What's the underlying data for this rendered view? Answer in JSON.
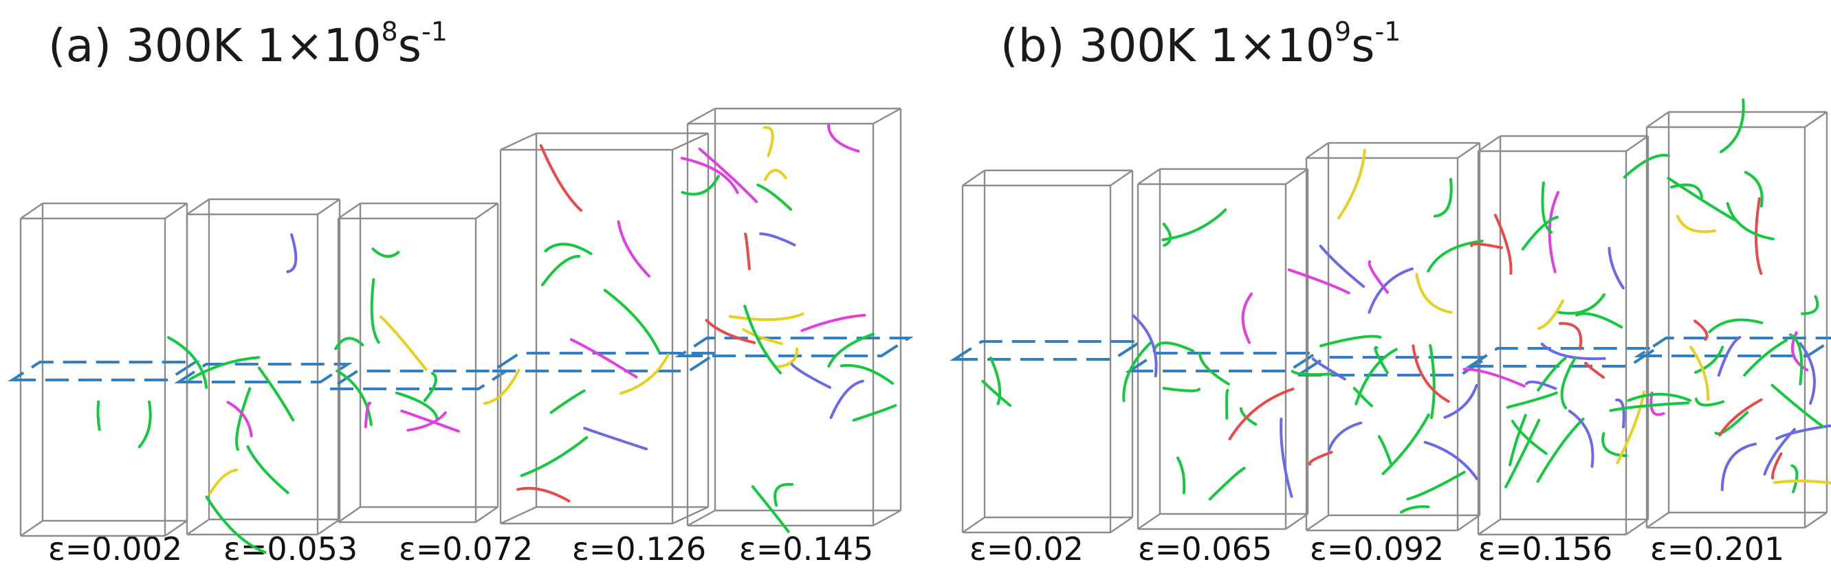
{
  "panels": [
    {
      "id": "a",
      "title_prefix": "(a) 300K 1×10",
      "title_exp": "8",
      "title_unit": "s",
      "title_unit_exp": "-1",
      "strains": [
        "ε=0.002",
        "ε=0.053",
        "ε=0.072",
        "ε=0.126",
        "ε=0.145"
      ]
    },
    {
      "id": "b",
      "title_prefix": "(b) 300K 1×10",
      "title_exp": "9",
      "title_unit": "s",
      "title_unit_exp": "-1",
      "strains": [
        "ε=0.02",
        "ε=0.065",
        "ε=0.092",
        "ε=0.156",
        "ε=0.201"
      ]
    }
  ],
  "colors": {
    "box_edge": "#8c8c8c",
    "slip_plane": "#2f7fc1",
    "dislocation_primary": "#15c840",
    "dislocation_secondary": "#e040e0",
    "dislocation_tertiary": "#e8d020",
    "dislocation_quaternary": "#e84a4a",
    "dislocation_other": "#6a6ae8"
  }
}
